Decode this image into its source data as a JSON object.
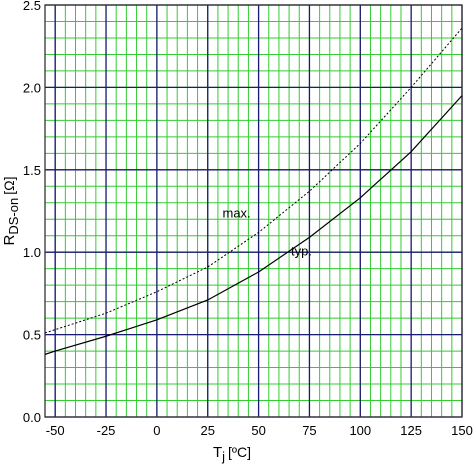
{
  "chart_data": {
    "type": "line",
    "xlabel": {
      "main": "T",
      "sub": "j",
      "unit": "[ºC]"
    },
    "ylabel": {
      "main": "R",
      "sub": "DS-on",
      "unit": "[Ω]"
    },
    "x": [
      -55,
      -50,
      -25,
      0,
      25,
      50,
      75,
      100,
      125,
      150
    ],
    "series": [
      {
        "name": "max.",
        "color": "#000000",
        "dash": "dotted",
        "values": [
          0.51,
          0.53,
          0.63,
          0.76,
          0.91,
          1.12,
          1.37,
          1.66,
          2.0,
          2.36
        ]
      },
      {
        "name": "typ.",
        "color": "#000000",
        "dash": "solid",
        "values": [
          0.38,
          0.4,
          0.49,
          0.59,
          0.71,
          0.88,
          1.09,
          1.33,
          1.61,
          1.95
        ]
      }
    ],
    "xlim": [
      -55,
      150
    ],
    "xticks": [
      -50,
      -25,
      0,
      25,
      50,
      75,
      100,
      125,
      150
    ],
    "ylim": [
      0,
      2.5
    ],
    "yticks": [
      {
        "value": 0,
        "label": "0.0"
      },
      0.5,
      {
        "value": 1,
        "label": "1.0"
      },
      1.5,
      {
        "value": 2,
        "label": "2.0"
      },
      2.5
    ],
    "grid": true,
    "minor_grid": true,
    "grid_color": "#1a1a6e",
    "minor_grid_color": "#33cc33"
  }
}
